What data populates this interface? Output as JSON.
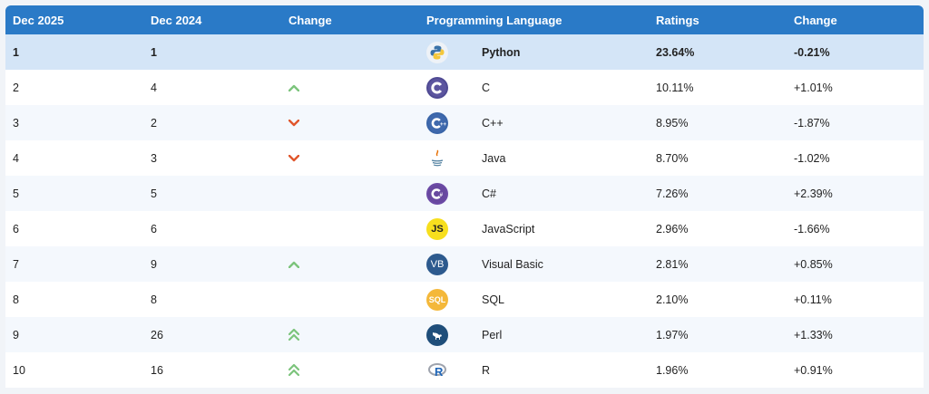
{
  "headers": {
    "dec2025": "Dec 2025",
    "dec2024": "Dec 2024",
    "change": "Change",
    "language": "Programming Language",
    "ratings": "Ratings",
    "change_pct": "Change"
  },
  "rows": [
    {
      "dec2025": "1",
      "dec2024": "1",
      "trend": "none",
      "icon": "python-logo-icon",
      "language": "Python",
      "ratings": "23.64%",
      "change": "-0.21%"
    },
    {
      "dec2025": "2",
      "dec2024": "4",
      "trend": "up",
      "icon": "c-logo-icon",
      "language": "C",
      "ratings": "10.11%",
      "change": "+1.01%"
    },
    {
      "dec2025": "3",
      "dec2024": "2",
      "trend": "down",
      "icon": "cpp-logo-icon",
      "language": "C++",
      "ratings": "8.95%",
      "change": "-1.87%"
    },
    {
      "dec2025": "4",
      "dec2024": "3",
      "trend": "down",
      "icon": "java-logo-icon",
      "language": "Java",
      "ratings": "8.70%",
      "change": "-1.02%"
    },
    {
      "dec2025": "5",
      "dec2024": "5",
      "trend": "none",
      "icon": "csharp-logo-icon",
      "language": "C#",
      "ratings": "7.26%",
      "change": "+2.39%"
    },
    {
      "dec2025": "6",
      "dec2024": "6",
      "trend": "none",
      "icon": "javascript-logo-icon",
      "language": "JavaScript",
      "ratings": "2.96%",
      "change": "-1.66%"
    },
    {
      "dec2025": "7",
      "dec2024": "9",
      "trend": "up",
      "icon": "visual-basic-logo-icon",
      "language": "Visual Basic",
      "ratings": "2.81%",
      "change": "+0.85%"
    },
    {
      "dec2025": "8",
      "dec2024": "8",
      "trend": "none",
      "icon": "sql-logo-icon",
      "language": "SQL",
      "ratings": "2.10%",
      "change": "+0.11%"
    },
    {
      "dec2025": "9",
      "dec2024": "26",
      "trend": "up-double",
      "icon": "perl-logo-icon",
      "language": "Perl",
      "ratings": "1.97%",
      "change": "+1.33%"
    },
    {
      "dec2025": "10",
      "dec2024": "16",
      "trend": "up-double",
      "icon": "r-logo-icon",
      "language": "R",
      "ratings": "1.96%",
      "change": "+0.91%"
    }
  ],
  "logo_text": {
    "js": "JS",
    "vb": "VB",
    "sql": "SQL"
  },
  "colors": {
    "header_bg": "#2a7ac7",
    "highlight_row": "#d4e5f7",
    "up_arrow": "#7cc47c",
    "down_arrow": "#e0562c"
  }
}
